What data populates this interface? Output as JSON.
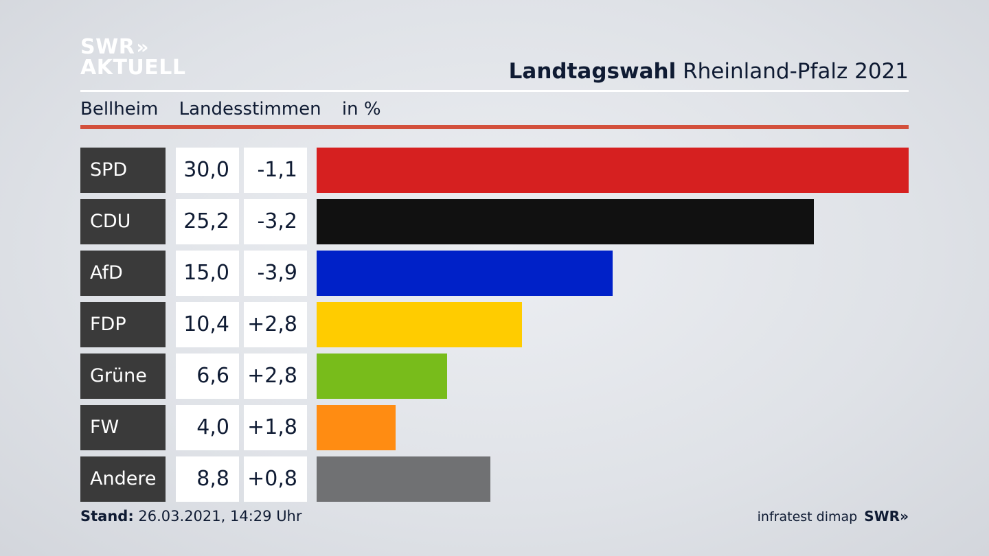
{
  "brand": {
    "logo_line1": "SWR",
    "logo_arrows": "»",
    "logo_line2": "AKTUELL"
  },
  "header": {
    "title_bold": "Landtagswahl",
    "title_rest": "Rheinland-Pfalz 2021"
  },
  "subheader": {
    "place": "Bellheim",
    "measure": "Landesstimmen",
    "unit": "in %"
  },
  "chart_data": {
    "type": "bar",
    "orientation": "horizontal",
    "categories": [
      "SPD",
      "CDU",
      "AfD",
      "FDP",
      "Grüne",
      "FW",
      "Andere"
    ],
    "series": [
      {
        "values": [
          30.0,
          25.2,
          15.0,
          10.4,
          6.6,
          4.0,
          8.8
        ]
      }
    ],
    "value_labels": [
      "30,0",
      "25,2",
      "15,0",
      "10,4",
      "6,6",
      "4,0",
      "8,8"
    ],
    "change_labels": [
      "-1,1",
      "-3,2",
      "-3,9",
      "+2,8",
      "+2,8",
      "+1,8",
      "+0,8"
    ],
    "changes": [
      -1.1,
      -3.2,
      -3.9,
      2.8,
      2.8,
      1.8,
      0.8
    ],
    "colors": [
      "#d62020",
      "#111111",
      "#0021c8",
      "#ffcc00",
      "#78bc1b",
      "#ff8c12",
      "#707173"
    ],
    "xlim": [
      0,
      30.0
    ],
    "grid": false,
    "legend": "none"
  },
  "footer": {
    "stand_label": "Stand:",
    "stand_value": "26.03.2021, 14:29 Uhr",
    "source": "infratest dimap",
    "source_brand": "SWR",
    "source_arrows": "»"
  }
}
